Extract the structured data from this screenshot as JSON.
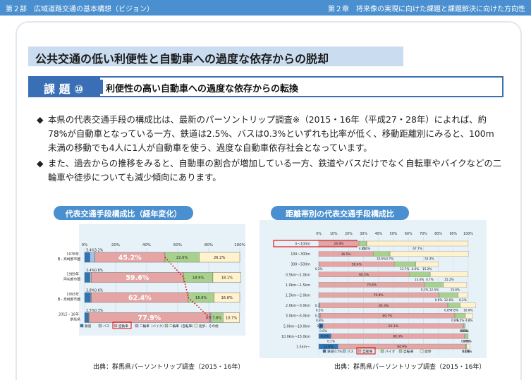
{
  "header": {
    "left": "第２部　広域道路交通の基本構想（ビジョン）",
    "right": "第２章　将来像の実現に向けた課題と課題解決に向けた方向性"
  },
  "headline": "公共交通の低い利便性と自動車への過度な依存からの脱却",
  "issue": {
    "badge": "課 題 ⑩",
    "title": "利便性の高い自動車への過度な依存からの転換"
  },
  "bullets": [
    {
      "mark": "◆",
      "text": "本県の代表交通手段の構成比は、最新のパーソントリップ調査※（2015・16年（平成27・28年）によれば、約78%が自動車となっている一方、鉄道は2.5%、バスは0.3%といずれも比率が低く、移動距離別にみると、100m未満の移動でも4人に1人が自動車を使う、過度な自動車依存社会となっています。"
    },
    {
      "mark": "◆",
      "text": "また、過去からの推移をみると、自動車の割合が増加している一方、鉄道やバスだけでなく自転車やバイクなどの二輪車や徒歩についても減少傾向にあります。"
    }
  ],
  "colors": {
    "railway": "#2e75b6",
    "bus": "#9dc3e6",
    "car": "#e6a5a5",
    "motorbike": "#c9a0dc",
    "bike": "#a9d18e",
    "walk": "#fff2cc",
    "header": "#4a8fcf",
    "highlight": "#e00000"
  },
  "chart_data": [
    {
      "type": "bar",
      "title": "代表交通手段構成比（経年変化）",
      "source": "出典：群馬県パーソントリップ調査（2015・16年）",
      "orientation": "horizontal-stacked",
      "categories": [
        [
          "1978年",
          "前橋・高崎都市圏"
        ],
        [
          "1989年",
          "両毛都市圏"
        ],
        [
          "1993年",
          "前橋・高崎都市圏"
        ],
        [
          "2015・16年",
          "群馬県"
        ]
      ],
      "xticks": [
        "0%",
        "20%",
        "40%",
        "60%",
        "80%",
        "100%"
      ],
      "series": [
        {
          "name": "鉄道",
          "values": [
            3.4,
            3.4,
            3.8,
            2.5
          ],
          "labels": [
            "3.4%",
            "3.4%",
            "3.8%",
            "2.5%"
          ]
        },
        {
          "name": "バス",
          "values": [
            3.2,
            0.8,
            0.6,
            0.3
          ],
          "labels": [
            "3.2%",
            "0.8%",
            "0.6%",
            "0.3%"
          ]
        },
        {
          "name": "自動車",
          "values": [
            45.2,
            59.6,
            62.4,
            77.9
          ],
          "labels": [
            "45.2%",
            "59.6%",
            "62.4%",
            "77.9%"
          ]
        },
        {
          "name": "二輪車（バイク）",
          "values": [
            0,
            0,
            0,
            0.7
          ],
          "labels": [
            "",
            "",
            "",
            "0.7%"
          ]
        },
        {
          "name": "二輪車（自転車）",
          "values": [
            22.0,
            18.9,
            16.6,
            7.8
          ],
          "labels": [
            "22.0%",
            "18.9%",
            "16.6%",
            "7.8%"
          ]
        },
        {
          "name": "徒歩、その他",
          "values": [
            26.2,
            18.1,
            16.6,
            10.7
          ],
          "labels": [
            "26.2%",
            "18.1%",
            "16.6%",
            "10.7%"
          ]
        }
      ],
      "highlight_legend": "自動車"
    },
    {
      "type": "bar",
      "title": "距離帯別の代表交通手段構成比",
      "source": "出典：群馬県パーソントリップ調査（2015・16年）",
      "orientation": "horizontal-stacked",
      "categories": [
        "0〜100m",
        "100〜300m",
        "300〜500m",
        "0.5km〜1.0km",
        "1.0km〜1.5km",
        "1.5km〜2.0km",
        "2.0km〜3.0km",
        "3.0km〜5.0km",
        "5.0km〜10.0km",
        "10.0km〜15.0km",
        "1.5km〜"
      ],
      "xticks": [
        "0%",
        "10%",
        "20%",
        "30%",
        "40%",
        "50%",
        "60%",
        "70%",
        "80%",
        "90%",
        "100%"
      ],
      "series": [
        {
          "name": "鉄道",
          "values": [
            0,
            0,
            0,
            0,
            0,
            0,
            0.3,
            0.3,
            2.8,
            8.2,
            12.8
          ],
          "labels": [
            "",
            "",
            "",
            "",
            "",
            "",
            "0.3%",
            "0.3%",
            "2.8%",
            "8.2%",
            "12.8%"
          ]
        },
        {
          "name": "バス",
          "values": [
            0,
            0,
            0.2,
            0,
            0,
            0,
            0.5,
            0.8,
            0.6,
            0.1,
            0.5
          ]
        },
        {
          "name": "自動車",
          "values": [
            26.9,
            36.5,
            50.4,
            60.5,
            70.8,
            79.8,
            85.3,
            89.7,
            93.1,
            89.3,
            84.9
          ],
          "labels": [
            "26.9%",
            "36.5%",
            "50.4%",
            "60.5%",
            "70.8%",
            "79.8%",
            "85.3%",
            "89.7%",
            "93.1%",
            "89.3%",
            "84.9%"
          ]
        },
        {
          "name": "バイク",
          "values": [
            4.8,
            10.6,
            13.7,
            13.4,
            0.1,
            0.9,
            0.8,
            0.8,
            0.6,
            0.4,
            0.2
          ]
        },
        {
          "name": "自転車",
          "values": [
            0.5,
            0.7,
            0.6,
            0.7,
            12.5,
            12.6,
            7.8,
            6.5,
            0.6,
            1.7,
            0.6
          ]
        },
        {
          "name": "徒歩",
          "values": [
            67.7,
            52.4,
            15.2,
            25.2,
            15.6,
            6.2,
            10.4,
            4.8,
            0.3,
            0.1,
            2.0
          ]
        }
      ],
      "highlight_category": "0〜100m",
      "highlight_legend": "自動車"
    }
  ]
}
